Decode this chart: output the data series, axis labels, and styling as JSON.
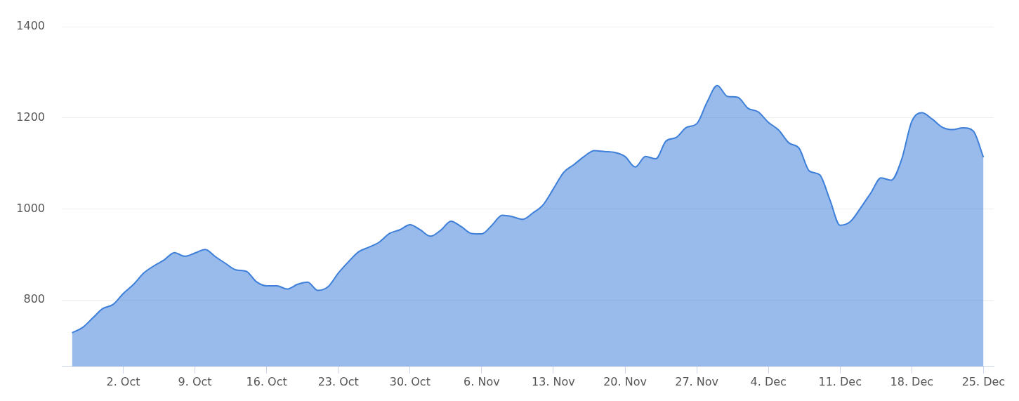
{
  "chart_data": {
    "type": "area",
    "x": [
      "--09-27",
      "--09-28",
      "--09-29",
      "--09-30",
      "--10-01",
      "--10-02",
      "--10-03",
      "--10-04",
      "--10-05",
      "--10-06",
      "--10-07",
      "--10-08",
      "--10-09",
      "--10-10",
      "--10-11",
      "--10-12",
      "--10-13",
      "--10-14",
      "--10-15",
      "--10-16",
      "--10-17",
      "--10-18",
      "--10-19",
      "--10-20",
      "--10-21",
      "--10-22",
      "--10-23",
      "--10-24",
      "--10-25",
      "--10-26",
      "--10-27",
      "--10-28",
      "--10-29",
      "--10-30",
      "--10-31",
      "--11-01",
      "--11-02",
      "--11-03",
      "--11-04",
      "--11-05",
      "--11-06",
      "--11-07",
      "--11-08",
      "--11-09",
      "--11-10",
      "--11-11",
      "--11-12",
      "--11-13",
      "--11-14",
      "--11-15",
      "--11-16",
      "--11-17",
      "--11-18",
      "--11-19",
      "--11-20",
      "--11-21",
      "--11-22",
      "--11-23",
      "--11-24",
      "--11-25",
      "--11-26",
      "--11-27",
      "--11-28",
      "--11-29",
      "--11-30",
      "--12-01",
      "--12-02",
      "--12-03",
      "--12-04",
      "--12-05",
      "--12-06",
      "--12-07",
      "--12-08",
      "--12-09",
      "--12-10",
      "--12-11",
      "--12-12",
      "--12-13",
      "--12-14",
      "--12-15",
      "--12-16",
      "--12-17",
      "--12-18",
      "--12-19",
      "--12-20",
      "--12-21",
      "--12-22",
      "--12-23",
      "--12-24",
      "--12-25"
    ],
    "series": [
      {
        "color": "#3d7fd9",
        "values": [
          728,
          739,
          760,
          781,
          790,
          814,
          834,
          859,
          875,
          888,
          904,
          896,
          903,
          911,
          895,
          880,
          866,
          863,
          840,
          831,
          831,
          824,
          834,
          839,
          821,
          829,
          859,
          884,
          906,
          916,
          927,
          946,
          954,
          965,
          954,
          940,
          953,
          973,
          961,
          946,
          945,
          964,
          986,
          983,
          977,
          991,
          1009,
          1044,
          1080,
          1097,
          1115,
          1128,
          1126,
          1124,
          1115,
          1092,
          1115,
          1110,
          1149,
          1157,
          1179,
          1187,
          1234,
          1271,
          1247,
          1245,
          1221,
          1213,
          1190,
          1173,
          1145,
          1133,
          1083,
          1075,
          1020,
          964,
          972,
          1002,
          1035,
          1068,
          1063,
          1108,
          1192,
          1211,
          1197,
          1179,
          1174,
          1178,
          1171,
          1113
        ]
      }
    ],
    "xlim": [
      "--09-26",
      "--12-26"
    ],
    "xticks": [
      {
        "value": "--10-02",
        "label": "2. Oct"
      },
      {
        "value": "--10-09",
        "label": "9. Oct"
      },
      {
        "value": "--10-16",
        "label": "16. Oct"
      },
      {
        "value": "--10-23",
        "label": "23. Oct"
      },
      {
        "value": "--10-30",
        "label": "30. Oct"
      },
      {
        "value": "--11-06",
        "label": "6. Nov"
      },
      {
        "value": "--11-13",
        "label": "13. Nov"
      },
      {
        "value": "--11-20",
        "label": "20. Nov"
      },
      {
        "value": "--11-27",
        "label": "27. Nov"
      },
      {
        "value": "--12-04",
        "label": "4. Dec"
      },
      {
        "value": "--12-11",
        "label": "11. Dec"
      },
      {
        "value": "--12-18",
        "label": "18. Dec"
      },
      {
        "value": "--12-25",
        "label": "25. Dec"
      }
    ],
    "ylim": [
      654,
      1400
    ],
    "yticks": [
      800,
      1000,
      1200,
      1400
    ],
    "grid": "y",
    "legend": false,
    "marker": "none"
  }
}
